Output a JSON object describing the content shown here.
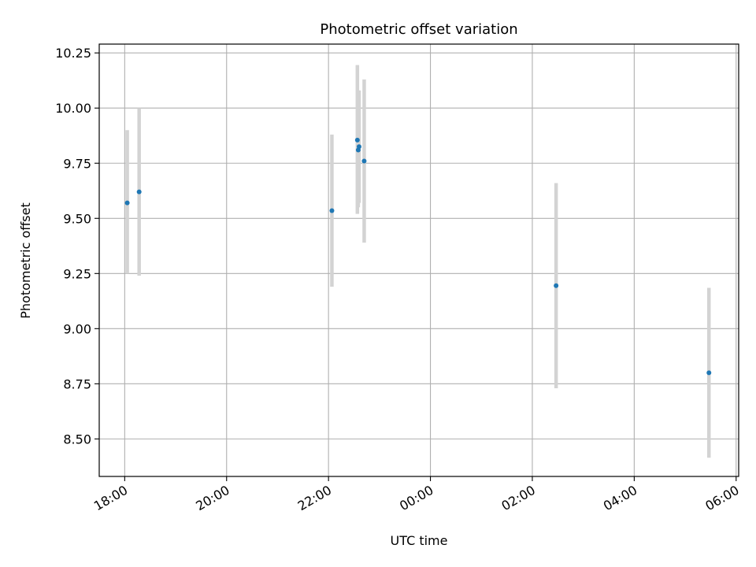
{
  "chart_data": {
    "type": "scatter",
    "title": "Photometric offset variation",
    "xlabel": "UTC time",
    "ylabel": "Photometric offset",
    "grid": true,
    "legend": "none",
    "x_range": [
      "17:30",
      "06:03"
    ],
    "ylim": [
      8.33,
      10.29
    ],
    "x_ticks": [
      "18:00",
      "20:00",
      "22:00",
      "00:00",
      "02:00",
      "04:00",
      "06:00"
    ],
    "y_ticks": [
      "8.50",
      "8.75",
      "9.00",
      "9.25",
      "9.50",
      "9.75",
      "10.00",
      "10.25"
    ],
    "colors": {
      "point": "#1f77b4",
      "errorbar": "#d3d3d3",
      "grid": "#b0b0b0"
    },
    "points": [
      {
        "x": "18:03",
        "y": 9.57,
        "err_low": 9.25,
        "err_high": 9.9
      },
      {
        "x": "18:17",
        "y": 9.62,
        "err_low": 9.24,
        "err_high": 10.0
      },
      {
        "x": "22:04",
        "y": 9.535,
        "err_low": 9.19,
        "err_high": 9.88
      },
      {
        "x": "22:34",
        "y": 9.855,
        "err_low": 9.52,
        "err_high": 10.195
      },
      {
        "x": "22:35",
        "y": 9.81,
        "err_low": 9.55,
        "err_high": 10.08
      },
      {
        "x": "22:36",
        "y": 9.825,
        "err_low": 9.57,
        "err_high": 10.08
      },
      {
        "x": "22:42",
        "y": 9.76,
        "err_low": 9.39,
        "err_high": 10.13
      },
      {
        "x": "02:28",
        "y": 9.195,
        "err_low": 8.73,
        "err_high": 9.66
      },
      {
        "x": "05:28",
        "y": 8.8,
        "err_low": 8.415,
        "err_high": 9.185
      }
    ]
  }
}
